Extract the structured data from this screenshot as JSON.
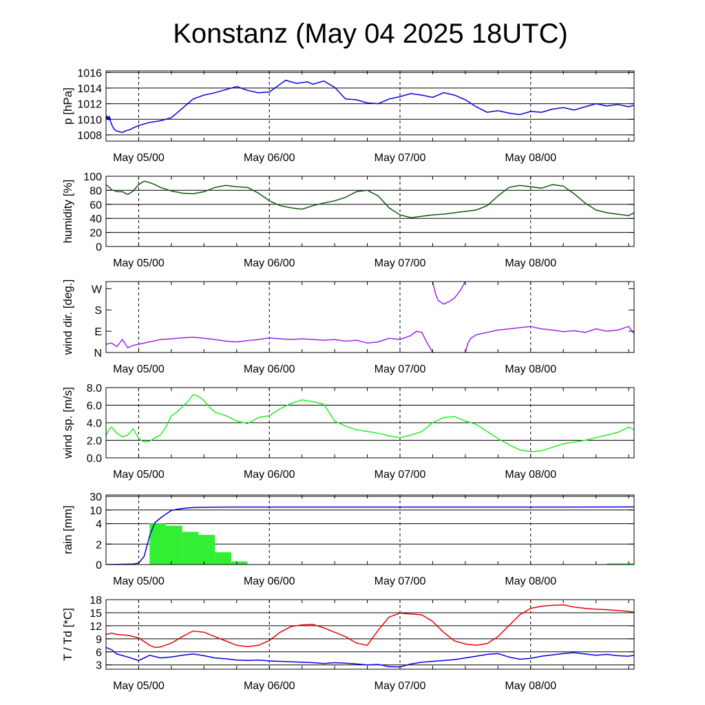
{
  "title": "Konstanz (May 04 2025 18UTC)",
  "x_ticks": [
    "May 05/00",
    "May 06/00",
    "May 07/00",
    "May 08/00"
  ],
  "chart_data": [
    {
      "type": "line",
      "id": "pressure",
      "ylabel": "p [hPa]",
      "ylim": [
        1007.2,
        1016.2
      ],
      "yticks": [
        1008,
        1010,
        1012,
        1014,
        1016
      ],
      "ytick_labels": [
        "1008",
        "1010",
        "1012",
        "1014",
        "1016"
      ],
      "grid": true,
      "series": [
        {
          "color": "#0000dd",
          "x": [
            0,
            0.1,
            0.2,
            0.35,
            0.5,
            0.65,
            0.8,
            1,
            1.2,
            1.5,
            2,
            2.5,
            3,
            3.5,
            4,
            4.5,
            5,
            6,
            8,
            10,
            12,
            14,
            16,
            18,
            20,
            22,
            24,
            26,
            28,
            30,
            32,
            33,
            34,
            35,
            36,
            37,
            38,
            40,
            42,
            44,
            46,
            48,
            50,
            52,
            54,
            56,
            58,
            60,
            62,
            64,
            66,
            68,
            70,
            72,
            74,
            76,
            78,
            80,
            82,
            84,
            86,
            88,
            90,
            92,
            94,
            96,
            97
          ],
          "y": [
            1010.0,
            1010.5,
            1010.1,
            1010.3,
            1009.9,
            1010.4,
            1009.8,
            1009.4,
            1009.1,
            1008.7,
            1008.5,
            1008.4,
            1008.3,
            1008.5,
            1008.6,
            1008.7,
            1008.9,
            1009.2,
            1009.6,
            1009.8,
            1010.2,
            1011.4,
            1012.6,
            1013.1,
            1013.4,
            1013.8,
            1014.2,
            1013.7,
            1013.4,
            1013.5,
            1014.5,
            1015.0,
            1014.8,
            1014.6,
            1014.7,
            1014.8,
            1014.5,
            1014.9,
            1014.1,
            1012.6,
            1012.5,
            1012.1,
            1012.0,
            1012.6,
            1012.9,
            1013.3,
            1013.1,
            1012.8,
            1013.4,
            1013.1,
            1012.5,
            1011.6,
            1010.9,
            1011.1,
            1010.8,
            1010.6,
            1011.0,
            1010.9,
            1011.3,
            1011.5,
            1011.2,
            1011.6,
            1012.0,
            1011.7,
            1011.9,
            1011.6,
            1011.8
          ]
        }
      ]
    },
    {
      "type": "line",
      "id": "humidity",
      "ylabel": "humidity [%]",
      "ylim": [
        0,
        100
      ],
      "yticks": [
        0,
        20,
        40,
        60,
        80,
        100
      ],
      "ytick_labels": [
        "0",
        "20",
        "40",
        "60",
        "80",
        "100"
      ],
      "grid": true,
      "series": [
        {
          "color": "#0a5a0a",
          "x": [
            0,
            0.5,
            1,
            2,
            3,
            4,
            5,
            6,
            7,
            8,
            9,
            10,
            12,
            14,
            16,
            18,
            20,
            22,
            24,
            26,
            28,
            30,
            32,
            34,
            36,
            38,
            40,
            42,
            44,
            46,
            48,
            50,
            52,
            54,
            56,
            58,
            60,
            62,
            64,
            66,
            68,
            70,
            72,
            74,
            76,
            78,
            80,
            82,
            84,
            86,
            88,
            90,
            92,
            94,
            96,
            97
          ],
          "y": [
            88,
            85,
            81,
            78,
            78,
            74,
            79,
            88,
            93,
            91,
            88,
            84,
            79,
            76,
            75,
            78,
            84,
            87,
            85,
            84,
            76,
            65,
            58,
            55,
            53,
            58,
            62,
            65,
            70,
            78,
            80,
            72,
            55,
            45,
            41,
            43,
            45,
            46,
            48,
            50,
            52,
            58,
            72,
            84,
            87,
            85,
            83,
            88,
            86,
            75,
            62,
            52,
            48,
            46,
            44,
            48
          ]
        }
      ]
    },
    {
      "type": "line",
      "id": "wind_direction",
      "ylabel": "wind dir. [deg.]",
      "ylim": [
        0,
        300
      ],
      "yticks": [
        0,
        90,
        180,
        270
      ],
      "ytick_labels": [
        "N",
        "E",
        "S",
        "W"
      ],
      "grid": false,
      "series": [
        {
          "color": "#a020f0",
          "x": [
            0,
            1,
            2,
            3,
            4,
            5,
            6,
            8,
            10,
            12,
            14,
            16,
            18,
            20,
            22,
            24,
            26,
            28,
            30,
            32,
            34,
            36,
            38,
            40,
            42,
            44,
            46,
            48,
            50,
            52,
            54,
            56,
            57,
            58,
            59,
            60
          ],
          "y": [
            35,
            40,
            25,
            55,
            20,
            30,
            35,
            45,
            55,
            58,
            62,
            65,
            60,
            55,
            48,
            45,
            50,
            55,
            62,
            58,
            55,
            58,
            55,
            52,
            55,
            48,
            52,
            40,
            45,
            60,
            55,
            72,
            90,
            85,
            40,
            0
          ]
        },
        {
          "color": "#a020f0",
          "x": [
            60,
            60.5,
            61,
            62,
            63,
            64,
            65,
            66
          ],
          "y": [
            300,
            250,
            220,
            205,
            215,
            230,
            260,
            300
          ]
        },
        {
          "color": "#a020f0",
          "x": [
            66,
            66.5,
            67,
            68,
            70,
            72,
            74,
            76,
            78,
            80,
            82,
            84,
            86,
            88,
            90,
            92,
            94,
            96,
            97
          ],
          "y": [
            0,
            40,
            60,
            75,
            85,
            95,
            100,
            105,
            110,
            100,
            95,
            88,
            92,
            85,
            100,
            90,
            95,
            110,
            80
          ]
        }
      ]
    },
    {
      "type": "line",
      "id": "wind_speed",
      "ylabel": "wind sp. [m/s]",
      "ylim": [
        0,
        8
      ],
      "yticks": [
        0,
        2,
        4,
        6,
        8
      ],
      "ytick_labels": [
        "0.0",
        "2.0",
        "4.0",
        "6.0",
        "8.0"
      ],
      "grid": true,
      "series": [
        {
          "color": "#22ee22",
          "x": [
            0,
            0.5,
            1,
            2,
            3,
            4,
            5,
            6,
            7,
            8,
            9,
            10,
            11,
            12,
            13,
            14,
            15,
            16,
            17,
            18,
            19,
            20,
            22,
            24,
            26,
            28,
            30,
            32,
            34,
            36,
            38,
            40,
            42,
            44,
            46,
            48,
            50,
            52,
            54,
            56,
            58,
            60,
            62,
            64,
            66,
            68,
            70,
            72,
            74,
            76,
            78,
            80,
            82,
            84,
            86,
            88,
            90,
            92,
            94,
            96,
            97
          ],
          "y": [
            2.5,
            3.2,
            3.5,
            2.8,
            2.4,
            2.6,
            3.3,
            2.2,
            1.8,
            1.9,
            2.3,
            2.6,
            3.5,
            4.8,
            5.2,
            5.8,
            6.4,
            7.2,
            7.0,
            6.5,
            5.8,
            5.2,
            4.8,
            4.2,
            3.9,
            4.6,
            4.8,
            5.6,
            6.2,
            6.6,
            6.4,
            6.1,
            4.2,
            3.6,
            3.2,
            3.0,
            2.8,
            2.5,
            2.3,
            2.6,
            3.0,
            4.0,
            4.6,
            4.7,
            4.2,
            3.8,
            3.0,
            2.2,
            1.5,
            0.9,
            0.7,
            0.8,
            1.2,
            1.6,
            1.8,
            2.0,
            2.3,
            2.6,
            2.9,
            3.5,
            3.2
          ]
        }
      ]
    },
    {
      "type": "bar",
      "id": "rain",
      "ylabel": "rain [mm]",
      "yticks": [
        0,
        2,
        4,
        10,
        30
      ],
      "ytick_labels": [
        "0",
        "2",
        "4",
        "10",
        "30"
      ],
      "grid": true,
      "bars": {
        "color": "#33ee33",
        "edges": [
          8,
          11,
          14,
          17,
          20,
          23,
          26
        ],
        "values": [
          4.1,
          3.8,
          3.2,
          2.9,
          1.2,
          0.3
        ],
        "extra": [
          {
            "x0": 92,
            "x1": 97,
            "value": 0.05
          }
        ]
      },
      "series": [
        {
          "color": "#0000dd",
          "x": [
            0,
            5,
            6,
            7,
            8,
            9,
            10,
            11,
            12,
            13,
            14,
            15,
            16,
            17,
            18,
            20,
            24,
            36,
            48,
            60,
            72,
            84,
            97
          ],
          "y": [
            0,
            0.05,
            0.15,
            0.8,
            2.8,
            4.5,
            6.5,
            8.2,
            9.8,
            11.0,
            12.2,
            13.0,
            13.5,
            13.8,
            14.0,
            14.2,
            14.3,
            14.3,
            14.3,
            14.3,
            14.3,
            14.3,
            14.5
          ]
        }
      ]
    },
    {
      "type": "line",
      "id": "temperature",
      "ylabel": "T / Td [*C]",
      "ylim": [
        2,
        18
      ],
      "yticks": [
        3,
        6,
        9,
        12,
        15,
        18
      ],
      "ytick_labels": [
        "3",
        "6",
        "9",
        "12",
        "15",
        "18"
      ],
      "grid": true,
      "series": [
        {
          "color": "#ee0000",
          "x": [
            0,
            1,
            2,
            4,
            6,
            8,
            9,
            10,
            12,
            14,
            16,
            18,
            20,
            22,
            24,
            26,
            28,
            30,
            32,
            34,
            36,
            38,
            40,
            42,
            44,
            46,
            48,
            50,
            52,
            54,
            56,
            58,
            60,
            62,
            64,
            66,
            68,
            70,
            72,
            74,
            76,
            78,
            80,
            82,
            84,
            86,
            88,
            90,
            92,
            94,
            96,
            97
          ],
          "y": [
            10,
            10.3,
            10.0,
            9.8,
            9.2,
            7.5,
            7.0,
            7.1,
            8.0,
            9.5,
            10.8,
            10.5,
            9.5,
            8.5,
            7.5,
            7.2,
            7.5,
            8.6,
            10.5,
            11.8,
            12.2,
            12.3,
            11.5,
            10.5,
            9.5,
            8.0,
            7.5,
            11.0,
            14.0,
            14.9,
            14.7,
            14.5,
            13.0,
            10.5,
            8.5,
            7.8,
            7.5,
            7.9,
            9.5,
            12.0,
            14.5,
            16.0,
            16.5,
            16.7,
            16.8,
            16.3,
            16.0,
            15.8,
            15.7,
            15.5,
            15.3,
            15.1
          ]
        },
        {
          "color": "#0000dd",
          "x": [
            0,
            1,
            2,
            4,
            6,
            8,
            10,
            12,
            14,
            16,
            18,
            20,
            22,
            24,
            26,
            28,
            30,
            32,
            34,
            36,
            38,
            40,
            42,
            44,
            46,
            48,
            50,
            52,
            54,
            56,
            58,
            60,
            62,
            64,
            66,
            68,
            70,
            72,
            74,
            76,
            78,
            80,
            82,
            84,
            86,
            88,
            90,
            92,
            94,
            96,
            97
          ],
          "y": [
            7.0,
            6.5,
            5.5,
            4.8,
            4.0,
            5.2,
            4.6,
            4.8,
            5.2,
            5.5,
            5.1,
            4.6,
            4.4,
            4.1,
            4.0,
            4.1,
            3.9,
            3.8,
            3.7,
            3.6,
            3.5,
            3.3,
            3.5,
            3.4,
            3.2,
            3.0,
            3.1,
            2.6,
            2.5,
            3.2,
            3.6,
            3.8,
            4.0,
            4.2,
            4.6,
            5.0,
            5.4,
            5.6,
            4.8,
            4.3,
            4.5,
            5.0,
            5.3,
            5.6,
            5.8,
            5.5,
            5.2,
            5.4,
            5.1,
            5.0,
            5.2
          ]
        }
      ]
    }
  ]
}
